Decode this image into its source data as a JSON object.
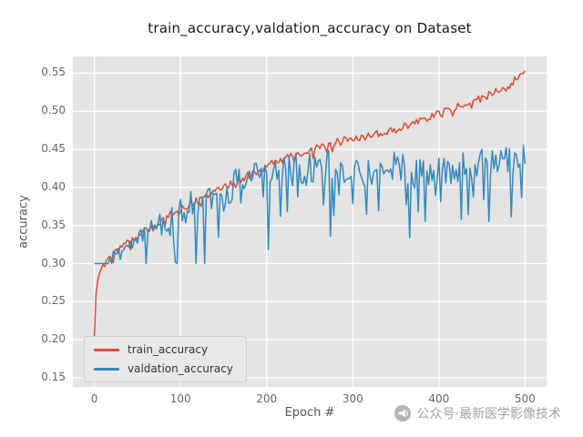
{
  "title": "train_accuracy,valdation_accuracy on Dataset",
  "watermark": {
    "text": "公众号·最新医学影像技术"
  },
  "chart_data": {
    "type": "line",
    "title": "train_accuracy,valdation_accuracy on Dataset",
    "xlabel": "Epoch #",
    "ylabel": "accuracy",
    "xlim": [
      -25,
      525
    ],
    "ylim": [
      0.138,
      0.572
    ],
    "xticks": [
      0,
      100,
      200,
      300,
      400,
      500
    ],
    "yticks": [
      0.15,
      0.2,
      0.25,
      0.3,
      0.35,
      0.4,
      0.45,
      0.5,
      0.55
    ],
    "grid": true,
    "background": "#e4e4e4",
    "gridline_color": "#ffffff",
    "legend_position": "lower left",
    "series": [
      {
        "name": "train_accuracy",
        "color": "#e24a33",
        "keypoints_x": [
          0,
          2,
          5,
          10,
          20,
          30,
          50,
          75,
          100,
          130,
          160,
          190,
          220,
          250,
          280,
          290,
          310,
          340,
          370,
          400,
          430,
          460,
          480,
          495,
          500
        ],
        "keypoints_y": [
          0.205,
          0.265,
          0.285,
          0.295,
          0.31,
          0.32,
          0.335,
          0.355,
          0.372,
          0.388,
          0.405,
          0.422,
          0.438,
          0.45,
          0.458,
          0.465,
          0.465,
          0.473,
          0.483,
          0.498,
          0.51,
          0.522,
          0.533,
          0.548,
          0.552
        ],
        "noise_amplitude": 0.005,
        "spike_probability": 0.15,
        "spike_amplitude": 0.012,
        "spike_start": 20,
        "ramp": false,
        "clamp": [
          0.18,
          0.56
        ],
        "seed": 3,
        "step": 2
      },
      {
        "name": "valdation_accuracy",
        "color": "#348abd",
        "keypoints_x": [
          0,
          2,
          5,
          10,
          20,
          30,
          50,
          75,
          100,
          130,
          160,
          190,
          220,
          250,
          280,
          310,
          340,
          370,
          400,
          430,
          460,
          480,
          500
        ],
        "keypoints_y": [
          0.235,
          0.27,
          0.285,
          0.293,
          0.305,
          0.315,
          0.33,
          0.35,
          0.368,
          0.385,
          0.4,
          0.415,
          0.422,
          0.428,
          0.428,
          0.425,
          0.43,
          0.42,
          0.428,
          0.425,
          0.432,
          0.43,
          0.44
        ],
        "noise_amplitude": 0.022,
        "spike_probability": 0.22,
        "spike_amplitude": 0.09,
        "spike_start": 40,
        "ramp": true,
        "clamp": [
          0.3,
          0.472
        ],
        "seed": 11,
        "step": 2
      }
    ]
  }
}
